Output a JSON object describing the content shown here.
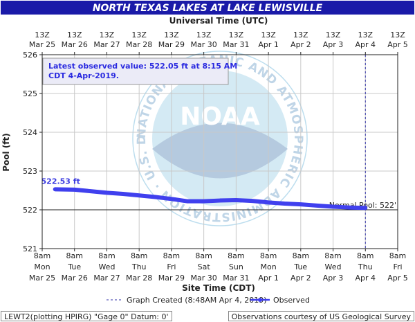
{
  "title": "NORTH TEXAS LAKES AT LAKE LEWISVILLE",
  "top_axis_title": "Universal Time (UTC)",
  "bottom_axis_title": "Site Time (CDT)",
  "y_axis_title": "Pool (ft)",
  "latest_box": {
    "line1": "Latest observed value: 522.05 ft at 8:15 AM",
    "line2": "CDT 4-Apr-2019."
  },
  "watermark": "NATIONAL OCEANIC AND ATMOSPHERIC ADMINISTRATION · U.S. DEPARTMENT OF COMMERCE",
  "watermark_logo_text": "NOAA",
  "first_value_label": "522.53 ft",
  "normal_pool_label": "Normal Pool: 522'",
  "legend": {
    "created": "Graph Created (8:48AM Apr 4, 2019)",
    "observed": "Observed"
  },
  "footer_left": "LEWT2(plotting HPIRG) \"Gage 0\" Datum: 0'",
  "footer_right": "Observations courtesy of US Geological Survey",
  "colors": {
    "title_bg": "#1a1aa8",
    "series": "#4040ee",
    "grid": "#c8c8c8",
    "created_line": "#3333aa"
  },
  "chart_data": {
    "type": "line",
    "title": "NORTH TEXAS LAKES AT LAKE LEWISVILLE",
    "xlabel": "Site Time (CDT)",
    "ylabel": "Pool (ft)",
    "ylim": [
      521,
      526
    ],
    "xlim_days": [
      0,
      11
    ],
    "yticks": [
      521,
      522,
      523,
      524,
      525,
      526
    ],
    "bottom_ticks": [
      {
        "l1": "8am",
        "l2": "Mon",
        "l3": "Mar 25"
      },
      {
        "l1": "8am",
        "l2": "Tue",
        "l3": "Mar 26"
      },
      {
        "l1": "8am",
        "l2": "Wed",
        "l3": "Mar 27"
      },
      {
        "l1": "8am",
        "l2": "Thu",
        "l3": "Mar 28"
      },
      {
        "l1": "8am",
        "l2": "Fri",
        "l3": "Mar 29"
      },
      {
        "l1": "8am",
        "l2": "Sat",
        "l3": "Mar 30"
      },
      {
        "l1": "8am",
        "l2": "Sun",
        "l3": "Mar 31"
      },
      {
        "l1": "8am",
        "l2": "Mon",
        "l3": "Apr 1"
      },
      {
        "l1": "8am",
        "l2": "Tue",
        "l3": "Apr 2"
      },
      {
        "l1": "8am",
        "l2": "Wed",
        "l3": "Apr 3"
      },
      {
        "l1": "8am",
        "l2": "Thu",
        "l3": "Apr 4"
      },
      {
        "l1": "8am",
        "l2": "Fri",
        "l3": "Apr 5"
      }
    ],
    "top_ticks": [
      {
        "l1": "13Z",
        "l2": "Mar 25"
      },
      {
        "l1": "13Z",
        "l2": "Mar 26"
      },
      {
        "l1": "13Z",
        "l2": "Mar 27"
      },
      {
        "l1": "13Z",
        "l2": "Mar 28"
      },
      {
        "l1": "13Z",
        "l2": "Mar 29"
      },
      {
        "l1": "13Z",
        "l2": "Mar 30"
      },
      {
        "l1": "13Z",
        "l2": "Mar 31"
      },
      {
        "l1": "13Z",
        "l2": "Apr 1"
      },
      {
        "l1": "13Z",
        "l2": "Apr 2"
      },
      {
        "l1": "13Z",
        "l2": "Apr 3"
      },
      {
        "l1": "13Z",
        "l2": "Apr 4"
      },
      {
        "l1": "13Z",
        "l2": "Apr 5"
      }
    ],
    "normal_pool": 522,
    "graph_created_day": 10.0,
    "series": [
      {
        "name": "Observed",
        "x_days": [
          0.4,
          1.0,
          1.5,
          2.0,
          2.5,
          3.0,
          3.5,
          4.0,
          4.5,
          5.0,
          5.5,
          6.0,
          6.5,
          7.0,
          7.5,
          8.0,
          8.5,
          9.0,
          9.5,
          10.0
        ],
        "values": [
          522.53,
          522.52,
          522.48,
          522.44,
          522.41,
          522.37,
          522.33,
          522.28,
          522.22,
          522.22,
          522.24,
          522.25,
          522.23,
          522.19,
          522.16,
          522.14,
          522.11,
          522.08,
          522.06,
          522.05
        ]
      }
    ]
  }
}
